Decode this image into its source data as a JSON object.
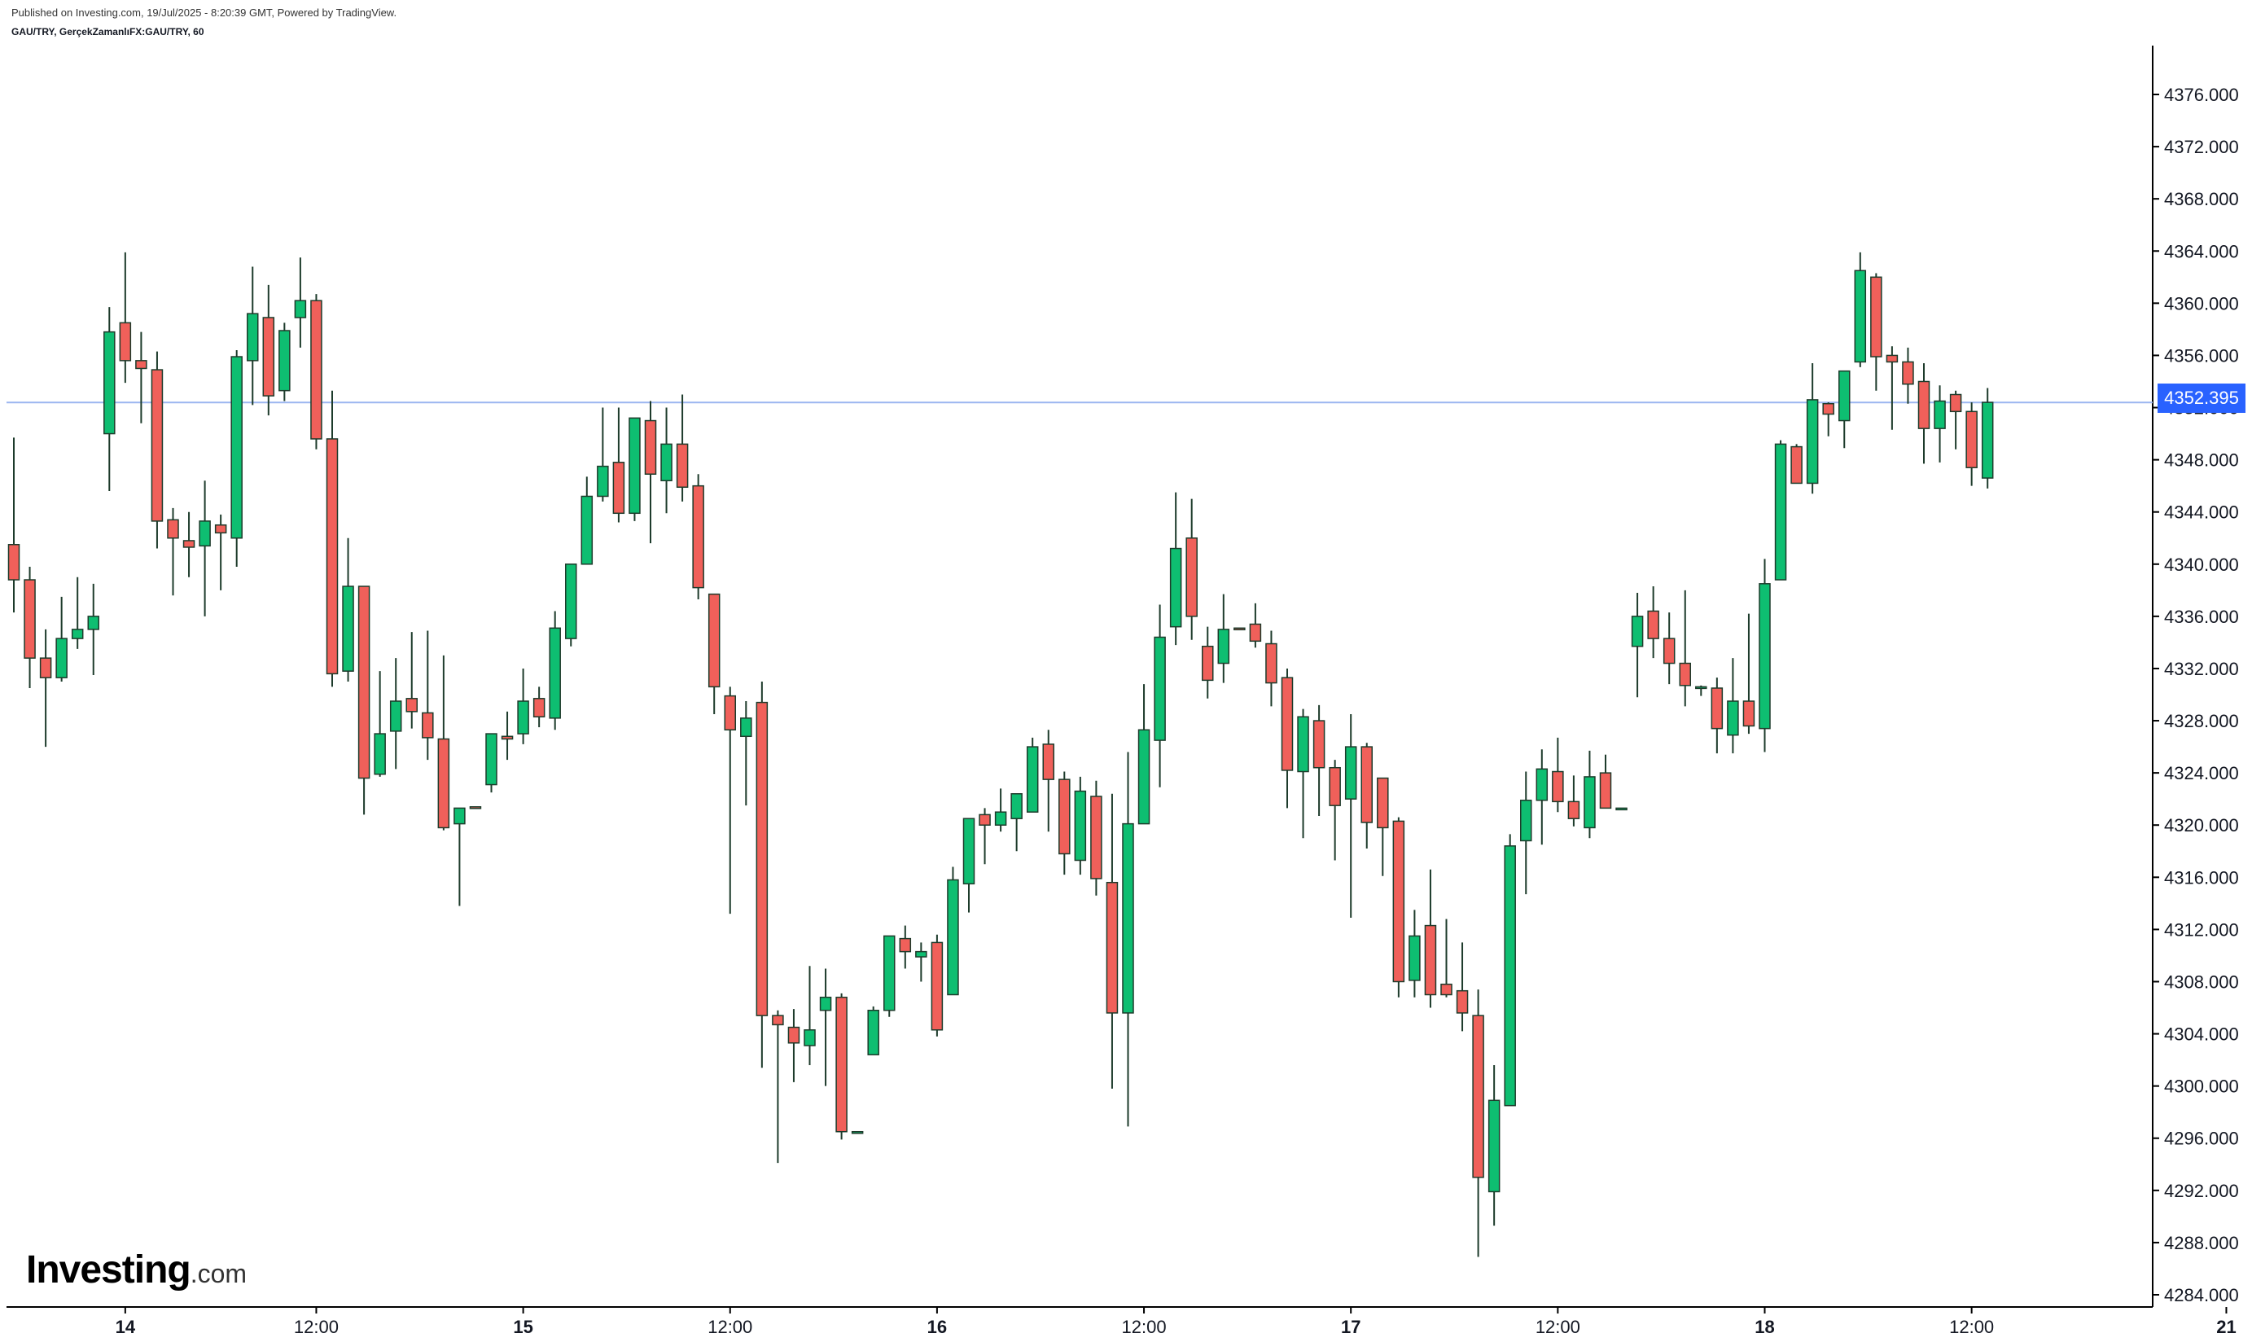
{
  "header": {
    "published": "Published on Investing.com, 19/Jul/2025 - 8:20:39 GMT, Powered by TradingView.",
    "symbol": "GAU/TRY, GerçekZamanlıFX:GAU/TRY, 60"
  },
  "logo": {
    "brand": "Investing",
    "suffix": ".com"
  },
  "colors": {
    "up": "#0ebe71",
    "down": "#f0605a",
    "wick": "#1d3b2b",
    "price_line": "#9bb6f0",
    "price_badge": "#2962ff"
  },
  "chart_data": {
    "type": "candlestick",
    "interval_minutes": 60,
    "current_price": 4352.395,
    "current_price_label": "4352.395",
    "ylim": [
      4281.5,
      4380.5
    ],
    "y_ticks": [
      4284,
      4288,
      4292,
      4296,
      4300,
      4304,
      4308,
      4312,
      4316,
      4320,
      4324,
      4328,
      4332,
      4336,
      4340,
      4344,
      4348,
      4352,
      4356,
      4360,
      4364,
      4368,
      4372,
      4376
    ],
    "y_tick_labels": [
      "4284.000",
      "4288.000",
      "4292.000",
      "4296.000",
      "4300.000",
      "4304.000",
      "4308.000",
      "4312.000",
      "4316.000",
      "4320.000",
      "4324.000",
      "4328.000",
      "4332.000",
      "4336.000",
      "4340.000",
      "4344.000",
      "4348.000",
      "4352.000",
      "4356.000",
      "4360.000",
      "4364.000",
      "4368.000",
      "4372.000",
      "4376.000"
    ],
    "x_ticks": [
      {
        "label": "14",
        "bold": true,
        "slot": 7
      },
      {
        "label": "12:00",
        "bold": false,
        "slot": 19
      },
      {
        "label": "15",
        "bold": true,
        "slot": 32
      },
      {
        "label": "12:00",
        "bold": false,
        "slot": 45
      },
      {
        "label": "16",
        "bold": true,
        "slot": 58
      },
      {
        "label": "12:00",
        "bold": false,
        "slot": 71
      },
      {
        "label": "17",
        "bold": true,
        "slot": 84
      },
      {
        "label": "12:00",
        "bold": false,
        "slot": 97
      },
      {
        "label": "18",
        "bold": true,
        "slot": 110
      },
      {
        "label": "12:00",
        "bold": false,
        "slot": 123
      },
      {
        "label": "21",
        "bold": true,
        "slot": 139
      }
    ],
    "candles": [
      [
        0,
        4341.5,
        4338.8,
        4349.7,
        4336.3
      ],
      [
        1,
        4338.8,
        4332.8,
        4339.8,
        4330.5
      ],
      [
        2,
        4332.8,
        4331.3,
        4335.0,
        4326.0
      ],
      [
        3,
        4331.3,
        4334.3,
        4337.5,
        4331.0
      ],
      [
        4,
        4334.3,
        4335.0,
        4339.0,
        4333.5
      ],
      [
        5,
        4335.0,
        4336.0,
        4338.5,
        4331.5
      ],
      [
        6,
        4350.0,
        4357.8,
        4359.7,
        4345.6
      ],
      [
        7,
        4358.5,
        4355.6,
        4363.9,
        4353.9
      ],
      [
        8,
        4355.6,
        4355.0,
        4357.8,
        4350.8
      ],
      [
        9,
        4354.9,
        4343.3,
        4356.3,
        4341.2
      ],
      [
        10,
        4343.4,
        4342.0,
        4344.3,
        4337.6
      ],
      [
        11,
        4341.8,
        4341.3,
        4344.0,
        4339.0
      ],
      [
        12,
        4341.4,
        4343.3,
        4346.4,
        4336.0
      ],
      [
        13,
        4343.0,
        4342.4,
        4343.8,
        4338.0
      ],
      [
        14,
        4342.0,
        4355.9,
        4356.4,
        4339.8
      ],
      [
        15,
        4355.6,
        4359.2,
        4362.8,
        4352.2
      ],
      [
        16,
        4358.9,
        4352.9,
        4361.4,
        4351.4
      ],
      [
        17,
        4353.3,
        4357.9,
        4358.5,
        4352.5
      ],
      [
        18,
        4358.9,
        4360.2,
        4363.5,
        4356.6
      ],
      [
        19,
        4360.2,
        4349.6,
        4360.7,
        4348.8
      ],
      [
        20,
        4349.6,
        4331.6,
        4353.3,
        4330.6
      ],
      [
        21,
        4331.8,
        4338.3,
        4342.0,
        4331.0
      ],
      [
        22,
        4338.3,
        4323.6,
        4338.3,
        4320.8
      ],
      [
        23,
        4323.9,
        4327.0,
        4331.8,
        4323.7
      ],
      [
        24,
        4327.2,
        4329.5,
        4332.8,
        4324.3
      ],
      [
        25,
        4329.7,
        4328.7,
        4334.8,
        4327.4
      ],
      [
        26,
        4328.6,
        4326.7,
        4334.9,
        4325.0
      ],
      [
        27,
        4326.6,
        4319.8,
        4333.0,
        4319.6
      ],
      [
        28,
        4320.1,
        4321.3,
        4321.3,
        4313.8
      ],
      [
        29,
        4321.4,
        4321.3,
        4321.3,
        4321.3
      ],
      [
        30,
        4323.1,
        4327.0,
        4327.0,
        4322.5
      ],
      [
        31,
        4326.8,
        4326.6,
        4328.7,
        4325.0
      ],
      [
        32,
        4327.0,
        4329.5,
        4332.0,
        4326.2
      ],
      [
        33,
        4329.7,
        4328.3,
        4330.6,
        4327.5
      ],
      [
        34,
        4328.2,
        4335.1,
        4336.4,
        4327.3
      ],
      [
        35,
        4334.3,
        4340.0,
        4340.0,
        4333.7
      ],
      [
        36,
        4340.0,
        4345.2,
        4346.7,
        4340.0
      ],
      [
        37,
        4345.2,
        4347.5,
        4352.0,
        4344.8
      ],
      [
        38,
        4347.8,
        4343.9,
        4352.0,
        4343.2
      ],
      [
        39,
        4343.9,
        4351.2,
        4351.2,
        4343.3
      ],
      [
        40,
        4351.0,
        4346.9,
        4352.5,
        4341.6
      ],
      [
        41,
        4346.4,
        4349.2,
        4352.0,
        4343.9
      ],
      [
        42,
        4349.2,
        4345.9,
        4353.0,
        4344.8
      ],
      [
        43,
        4346.0,
        4338.2,
        4346.9,
        4337.3
      ],
      [
        44,
        4337.7,
        4330.6,
        4337.7,
        4328.5
      ],
      [
        45,
        4329.9,
        4327.3,
        4330.6,
        4313.2
      ],
      [
        46,
        4326.8,
        4328.2,
        4329.5,
        4321.5
      ],
      [
        47,
        4329.4,
        4305.4,
        4331.0,
        4301.4
      ],
      [
        48,
        4305.4,
        4304.7,
        4305.8,
        4294.1
      ],
      [
        49,
        4304.5,
        4303.3,
        4305.9,
        4300.3
      ],
      [
        50,
        4303.1,
        4304.3,
        4309.2,
        4301.6
      ],
      [
        51,
        4305.8,
        4306.8,
        4309.0,
        4300.0
      ],
      [
        52,
        4306.8,
        4296.5,
        4307.1,
        4295.9
      ],
      [
        53,
        4296.5,
        4296.5,
        4296.5,
        4296.5
      ],
      [
        54,
        4302.4,
        4305.8,
        4306.1,
        4302.4
      ],
      [
        55,
        4305.8,
        4311.5,
        4311.5,
        4305.3
      ],
      [
        56,
        4311.3,
        4310.3,
        4312.3,
        4309.0
      ],
      [
        57,
        4309.9,
        4310.3,
        4311.0,
        4308.0
      ],
      [
        58,
        4311.0,
        4304.3,
        4311.6,
        4303.8
      ],
      [
        59,
        4307.0,
        4315.8,
        4316.8,
        4307.0
      ],
      [
        60,
        4315.5,
        4320.5,
        4320.5,
        4313.3
      ],
      [
        61,
        4320.8,
        4320.0,
        4321.3,
        4317.0
      ],
      [
        62,
        4320.0,
        4321.0,
        4322.8,
        4319.5
      ],
      [
        63,
        4320.5,
        4322.4,
        4322.4,
        4318.0
      ],
      [
        64,
        4321.0,
        4326.0,
        4326.7,
        4321.0
      ],
      [
        65,
        4326.2,
        4323.5,
        4327.3,
        4319.5
      ],
      [
        66,
        4323.5,
        4317.8,
        4324.1,
        4316.2
      ],
      [
        67,
        4317.3,
        4322.6,
        4323.7,
        4316.2
      ],
      [
        68,
        4322.2,
        4315.9,
        4323.4,
        4314.6
      ],
      [
        69,
        4315.6,
        4305.6,
        4322.4,
        4299.8
      ],
      [
        70,
        4305.6,
        4320.1,
        4325.6,
        4296.9
      ],
      [
        71,
        4320.1,
        4327.3,
        4330.8,
        4321.3
      ],
      [
        72,
        4326.5,
        4334.4,
        4336.9,
        4322.9
      ],
      [
        73,
        4335.2,
        4341.2,
        4345.5,
        4333.8
      ],
      [
        74,
        4342.0,
        4336.0,
        4345.0,
        4334.2
      ],
      [
        75,
        4333.7,
        4331.1,
        4335.2,
        4329.7
      ],
      [
        76,
        4332.4,
        4335.0,
        4337.7,
        4330.9
      ],
      [
        77,
        4335.1,
        4335.0,
        4335.0,
        4335.0
      ],
      [
        78,
        4335.4,
        4334.1,
        4337.0,
        4333.6
      ],
      [
        79,
        4333.9,
        4330.9,
        4334.9,
        4329.1
      ],
      [
        80,
        4331.3,
        4324.2,
        4332.0,
        4321.3
      ],
      [
        81,
        4324.1,
        4328.3,
        4328.9,
        4319.0
      ],
      [
        82,
        4328.0,
        4324.4,
        4329.2,
        4320.7
      ],
      [
        83,
        4324.4,
        4321.5,
        4325.0,
        4317.3
      ],
      [
        84,
        4322.0,
        4326.0,
        4328.5,
        4312.9
      ],
      [
        85,
        4326.0,
        4320.2,
        4326.3,
        4318.2
      ],
      [
        86,
        4323.6,
        4319.8,
        4323.6,
        4316.1
      ],
      [
        87,
        4320.3,
        4308.0,
        4320.6,
        4306.8
      ],
      [
        88,
        4308.1,
        4311.5,
        4313.5,
        4306.8
      ],
      [
        89,
        4312.3,
        4307.0,
        4316.6,
        4306.0
      ],
      [
        90,
        4307.8,
        4307.0,
        4312.8,
        4306.8
      ],
      [
        91,
        4307.3,
        4305.6,
        4311.0,
        4304.2
      ],
      [
        92,
        4305.4,
        4293.0,
        4307.4,
        4286.9
      ],
      [
        93,
        4291.9,
        4298.9,
        4301.6,
        4289.3
      ],
      [
        94,
        4298.5,
        4318.4,
        4319.3,
        4298.5
      ],
      [
        95,
        4318.8,
        4321.9,
        4324.1,
        4314.7
      ],
      [
        96,
        4321.9,
        4324.3,
        4325.8,
        4318.5
      ],
      [
        97,
        4324.1,
        4321.8,
        4326.7,
        4321.0
      ],
      [
        98,
        4321.8,
        4320.5,
        4323.8,
        4319.9
      ],
      [
        99,
        4319.8,
        4323.7,
        4325.7,
        4319.0
      ],
      [
        100,
        4324.0,
        4321.3,
        4325.4,
        4321.3
      ],
      [
        101,
        4321.3,
        4321.3,
        4321.3,
        4321.3
      ],
      [
        102,
        4333.7,
        4336.0,
        4337.8,
        4329.8
      ],
      [
        103,
        4336.4,
        4334.3,
        4338.3,
        4332.8
      ],
      [
        104,
        4334.3,
        4332.4,
        4336.3,
        4330.8
      ],
      [
        105,
        4332.4,
        4330.7,
        4338.0,
        4329.1
      ],
      [
        106,
        4330.6,
        4330.6,
        4330.7,
        4329.9
      ],
      [
        107,
        4330.5,
        4327.4,
        4331.3,
        4325.5
      ],
      [
        108,
        4326.9,
        4329.5,
        4332.8,
        4325.5
      ],
      [
        109,
        4329.5,
        4327.6,
        4336.2,
        4327.0
      ],
      [
        110,
        4327.4,
        4338.5,
        4340.4,
        4325.6
      ],
      [
        111,
        4338.8,
        4349.2,
        4349.5,
        4338.8
      ],
      [
        112,
        4349.0,
        4346.2,
        4349.2,
        4346.2
      ],
      [
        113,
        4346.2,
        4352.6,
        4355.4,
        4345.4
      ],
      [
        114,
        4352.3,
        4351.5,
        4352.4,
        4349.8
      ],
      [
        115,
        4351.0,
        4354.8,
        4354.8,
        4348.9
      ],
      [
        116,
        4355.5,
        4362.5,
        4363.9,
        4355.1
      ],
      [
        117,
        4362.0,
        4355.9,
        4362.3,
        4353.3
      ],
      [
        118,
        4356.0,
        4355.5,
        4356.7,
        4350.3
      ],
      [
        119,
        4355.5,
        4353.8,
        4356.6,
        4352.3
      ],
      [
        120,
        4354.0,
        4350.4,
        4355.4,
        4347.7
      ],
      [
        121,
        4350.4,
        4352.5,
        4353.7,
        4347.8
      ],
      [
        122,
        4353.0,
        4351.7,
        4353.3,
        4348.8
      ],
      [
        123,
        4351.7,
        4347.4,
        4352.4,
        4346.0
      ],
      [
        124,
        4346.6,
        4352.4,
        4353.5,
        4345.8
      ]
    ]
  }
}
